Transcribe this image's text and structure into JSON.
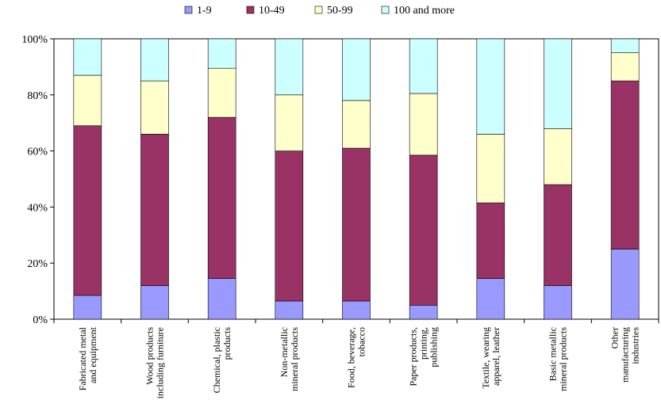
{
  "chart_data": {
    "type": "bar",
    "stacked": true,
    "percent": true,
    "categories": [
      [
        "Fabricated metal",
        "and equipment"
      ],
      [
        "Wood products",
        "including furniture"
      ],
      [
        "Chemical, plastic",
        "products"
      ],
      [
        "Non-metallic",
        "mineral products"
      ],
      [
        "Food, beverage,",
        "tobacco"
      ],
      [
        "Paper products,",
        "printing,",
        "publishing"
      ],
      [
        "Textile, wearing",
        "apparel, leather"
      ],
      [
        "Basic metallic",
        "mineral products"
      ],
      [
        "Other",
        "manufacturing",
        "industries"
      ]
    ],
    "series": [
      {
        "name": "1-9",
        "color": "#9999ff",
        "values": [
          8.5,
          12,
          14.5,
          6.5,
          6.5,
          5,
          14.5,
          12,
          25
        ]
      },
      {
        "name": "10-49",
        "color": "#993366",
        "values": [
          60.5,
          54,
          57.5,
          53.5,
          54.5,
          53.5,
          27,
          36,
          60
        ]
      },
      {
        "name": "50-99",
        "color": "#ffffcc",
        "values": [
          18,
          19,
          17.5,
          20,
          17,
          22,
          24.5,
          20,
          10
        ]
      },
      {
        "name": "100 and more",
        "color": "#ccffff",
        "values": [
          13,
          15,
          10.5,
          20,
          22,
          19.5,
          34,
          32,
          5
        ]
      }
    ],
    "yticks": [
      "0%",
      "20%",
      "40%",
      "60%",
      "80%",
      "100%"
    ],
    "ylim": [
      0,
      100
    ],
    "legend_position": "top",
    "grid": false
  }
}
